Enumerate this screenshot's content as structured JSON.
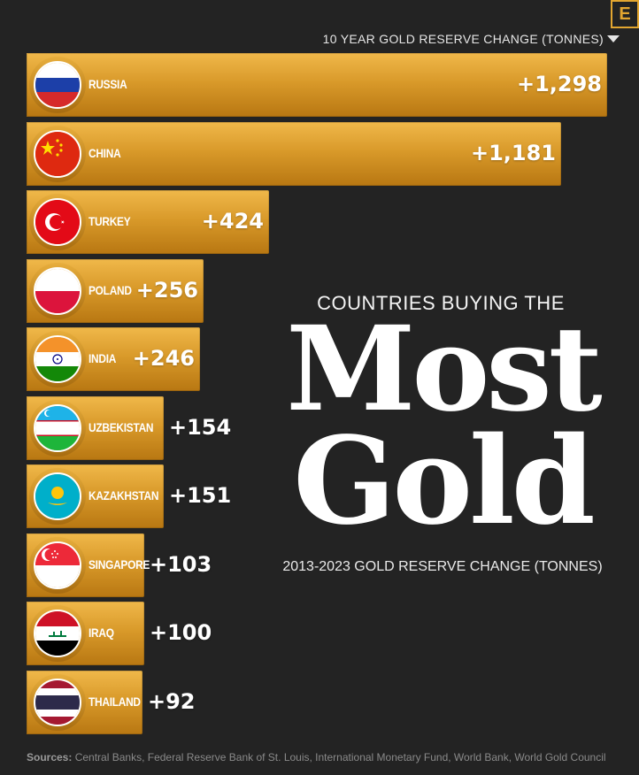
{
  "header": {
    "chart_title": "10 YEAR GOLD RESERVE CHANGE (TONNES)",
    "logo_letter": "E"
  },
  "headline": {
    "pre": "COUNTRIES BUYING THE",
    "line1": "Most",
    "line2": "Gold",
    "subtitle": "2013-2023 GOLD RESERVE CHANGE (TONNES)"
  },
  "footer": {
    "sources_label": "Sources:",
    "sources_text": "Central Banks, Federal Reserve Bank of St. Louis, International Monetary Fund, World Bank, World Gold Council"
  },
  "colors": {
    "background": "#232323",
    "bar_gold": "#d99a2a",
    "text": "#ffffff"
  },
  "chart_data": {
    "type": "bar",
    "orientation": "horizontal",
    "title": "10 YEAR GOLD RESERVE CHANGE (TONNES)",
    "categories": [
      "RUSSIA",
      "CHINA",
      "TURKEY",
      "POLAND",
      "INDIA",
      "UZBEKISTAN",
      "KAZAKHSTAN",
      "SINGAPORE",
      "IRAQ",
      "THAILAND"
    ],
    "values": [
      1298,
      1181,
      424,
      256,
      246,
      154,
      151,
      103,
      100,
      92
    ],
    "value_labels": [
      "+1,298",
      "+1,181",
      "+424",
      "+256",
      "+246",
      "+154",
      "+151",
      "+103",
      "+100",
      "+92"
    ],
    "flag_icons": [
      "russia-flag-icon",
      "china-flag-icon",
      "turkey-flag-icon",
      "poland-flag-icon",
      "india-flag-icon",
      "uzbekistan-flag-icon",
      "kazakhstan-flag-icon",
      "singapore-flag-icon",
      "iraq-flag-icon",
      "thailand-flag-icon"
    ],
    "xlabel": "",
    "ylabel": "",
    "grid": false
  }
}
